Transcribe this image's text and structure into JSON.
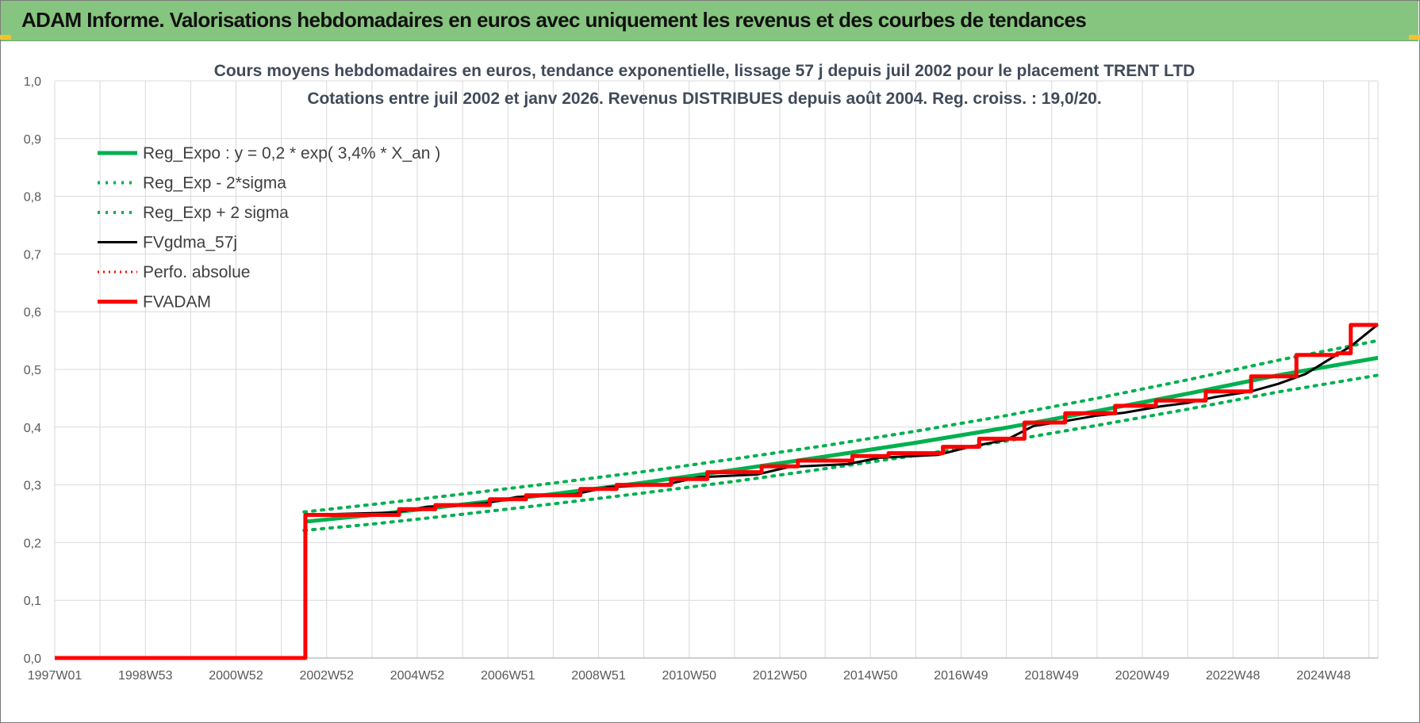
{
  "header": {
    "title": "ADAM Informe. Valorisations hebdomadaires en euros avec uniquement les revenus et des courbes de tendances"
  },
  "chart_data": {
    "type": "line",
    "title": "Cours moyens hebdomadaires en euros, tendance exponentielle, lissage 57 j depuis juil 2002 pour le placement TRENT LTD",
    "subtitle": "Cotations entre juil 2002 et janv 2026. Revenus DISTRIBUES depuis août 2004. Reg. croiss. : 19,0/20.",
    "xlabel": "",
    "ylabel": "",
    "ylim": [
      0,
      1
    ],
    "xlim": [
      1997.0,
      2026.2
    ],
    "y_ticks": [
      "0,0",
      "0,1",
      "0,2",
      "0,3",
      "0,4",
      "0,5",
      "0,6",
      "0,7",
      "0,8",
      "0,9",
      "1,0"
    ],
    "x_ticks": [
      {
        "label": "1997W01",
        "x": 1997.0
      },
      {
        "label": "1998W53",
        "x": 1999.0
      },
      {
        "label": "2000W52",
        "x": 2001.0
      },
      {
        "label": "2002W52",
        "x": 2003.0
      },
      {
        "label": "2004W52",
        "x": 2005.0
      },
      {
        "label": "2006W51",
        "x": 2007.0
      },
      {
        "label": "2008W51",
        "x": 2009.0
      },
      {
        "label": "2010W50",
        "x": 2011.0
      },
      {
        "label": "2012W50",
        "x": 2013.0
      },
      {
        "label": "2014W50",
        "x": 2015.0
      },
      {
        "label": "2016W49",
        "x": 2017.0
      },
      {
        "label": "2018W49",
        "x": 2019.0
      },
      {
        "label": "2020W49",
        "x": 2021.0
      },
      {
        "label": "2022W48",
        "x": 2023.0
      },
      {
        "label": "2024W48",
        "x": 2025.0
      }
    ],
    "grid": true,
    "legend_position": "top-left",
    "series": [
      {
        "name": "Reg_Expo : y = 0,2 * exp( 3,4% *  X_an )",
        "color": "#00b050",
        "style": "solid",
        "width": 5,
        "x": [
          2002.5,
          2004,
          2006,
          2008,
          2010,
          2012,
          2014,
          2016,
          2018,
          2020,
          2022,
          2024,
          2026.2
        ],
        "y": [
          0.236,
          0.248,
          0.266,
          0.284,
          0.304,
          0.326,
          0.349,
          0.373,
          0.399,
          0.428,
          0.458,
          0.49,
          0.52
        ]
      },
      {
        "name": "Reg_Exp - 2*sigma",
        "color": "#00b050",
        "style": "dotted",
        "width": 4,
        "x": [
          2002.5,
          2004,
          2006,
          2008,
          2010,
          2012,
          2014,
          2016,
          2018,
          2020,
          2022,
          2024,
          2026.2
        ],
        "y": [
          0.221,
          0.232,
          0.249,
          0.267,
          0.286,
          0.306,
          0.328,
          0.351,
          0.376,
          0.403,
          0.431,
          0.461,
          0.49
        ]
      },
      {
        "name": "Reg_Exp + 2 sigma",
        "color": "#00b050",
        "style": "dotted",
        "width": 4,
        "x": [
          2002.5,
          2004,
          2006,
          2008,
          2010,
          2012,
          2014,
          2016,
          2018,
          2020,
          2022,
          2024,
          2026.2
        ],
        "y": [
          0.253,
          0.266,
          0.284,
          0.303,
          0.323,
          0.345,
          0.368,
          0.393,
          0.42,
          0.45,
          0.482,
          0.516,
          0.55
        ]
      },
      {
        "name": "FVgdma_57j",
        "color": "#000000",
        "style": "solid",
        "width": 3,
        "x": [
          1997.0,
          2002.53,
          2002.55,
          2003.0,
          2004.5,
          2005.2,
          2006.5,
          2007.2,
          2008.5,
          2009.2,
          2010.5,
          2011.2,
          2012.5,
          2013.2,
          2014.5,
          2015.2,
          2016.5,
          2017.2,
          2018.0,
          2018.6,
          2019.2,
          2020.0,
          2020.6,
          2021.4,
          2022.0,
          2022.6,
          2023.4,
          2024.0,
          2024.6,
          2025.2,
          2025.6,
          2026.2
        ],
        "y": [
          0.0,
          0.0,
          0.248,
          0.249,
          0.252,
          0.262,
          0.268,
          0.279,
          0.284,
          0.296,
          0.301,
          0.313,
          0.318,
          0.331,
          0.336,
          0.347,
          0.352,
          0.366,
          0.378,
          0.402,
          0.409,
          0.42,
          0.425,
          0.436,
          0.442,
          0.452,
          0.462,
          0.475,
          0.492,
          0.521,
          0.54,
          0.578
        ]
      },
      {
        "name": "Perfo. absolue",
        "color": "#ff0000",
        "style": "dotted",
        "width": 3,
        "x": [],
        "y": []
      },
      {
        "name": "FVADAM",
        "color": "#ff0000",
        "style": "solid",
        "width": 5,
        "x": [
          1997.0,
          2002.53,
          2002.53,
          2004.6,
          2004.6,
          2005.4,
          2005.4,
          2006.6,
          2006.6,
          2007.4,
          2007.4,
          2008.6,
          2008.6,
          2009.4,
          2009.4,
          2010.6,
          2010.6,
          2011.4,
          2011.4,
          2012.6,
          2012.6,
          2013.4,
          2013.4,
          2014.6,
          2014.6,
          2015.4,
          2015.4,
          2016.6,
          2016.6,
          2017.4,
          2017.4,
          2018.4,
          2018.4,
          2019.3,
          2019.3,
          2020.4,
          2020.4,
          2021.3,
          2021.3,
          2022.4,
          2022.4,
          2023.4,
          2023.4,
          2024.4,
          2024.4,
          2025.3,
          2025.3,
          2025.6,
          2025.6,
          2026.2
        ],
        "y": [
          0.0,
          0.0,
          0.248,
          0.248,
          0.258,
          0.258,
          0.265,
          0.265,
          0.275,
          0.275,
          0.282,
          0.282,
          0.293,
          0.293,
          0.3,
          0.3,
          0.31,
          0.31,
          0.322,
          0.322,
          0.332,
          0.332,
          0.342,
          0.342,
          0.35,
          0.35,
          0.355,
          0.355,
          0.366,
          0.366,
          0.38,
          0.38,
          0.408,
          0.408,
          0.424,
          0.424,
          0.437,
          0.437,
          0.446,
          0.446,
          0.462,
          0.462,
          0.488,
          0.488,
          0.525,
          0.525,
          0.528,
          0.528,
          0.577,
          0.577
        ]
      }
    ]
  }
}
